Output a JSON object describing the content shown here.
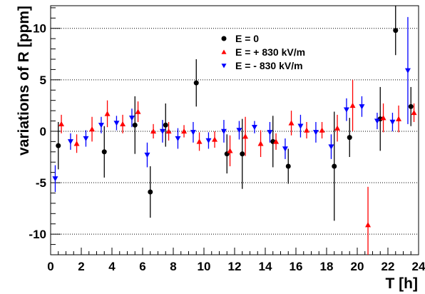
{
  "chart_data": {
    "type": "scatter",
    "title": "",
    "xlabel": "T [h]",
    "ylabel": "variations of R [ppm]",
    "xlim": [
      0,
      24
    ],
    "ylim": [
      -12,
      12.2
    ],
    "x_ticks": [
      0,
      2,
      4,
      6,
      8,
      10,
      12,
      14,
      16,
      18,
      20,
      22,
      24
    ],
    "y_ticks": [
      -10,
      -5,
      0,
      5,
      10
    ],
    "y_grid": [
      -10,
      -5,
      0,
      5,
      10
    ],
    "grid": "horizontal dotted",
    "legend_position": "top-center",
    "series": [
      {
        "name": "E = 0",
        "color": "#000000",
        "marker": "circle",
        "points": [
          {
            "x": 0.5,
            "y": -1.4,
            "err": 2.3
          },
          {
            "x": 3.5,
            "y": -2.0,
            "err": 2.5
          },
          {
            "x": 5.5,
            "y": 0.6,
            "err": 2.8
          },
          {
            "x": 6.5,
            "y": -5.9,
            "err": 2.5
          },
          {
            "x": 7.5,
            "y": 0.6,
            "err": 2.1
          },
          {
            "x": 9.5,
            "y": 4.7,
            "err": 2.3
          },
          {
            "x": 11.5,
            "y": -2.2,
            "err": 1.9
          },
          {
            "x": 12.5,
            "y": -2.2,
            "err": 3.4
          },
          {
            "x": 14.5,
            "y": -1.0,
            "err": 2.5
          },
          {
            "x": 15.5,
            "y": -3.4,
            "err": 1.7
          },
          {
            "x": 18.5,
            "y": -3.4,
            "err": 5.3
          },
          {
            "x": 19.5,
            "y": -0.6,
            "err": 1.9
          },
          {
            "x": 21.5,
            "y": 1.2,
            "err": 3.1
          },
          {
            "x": 22.5,
            "y": 9.8,
            "err": 2.4
          },
          {
            "x": 23.5,
            "y": 2.4,
            "err": 1.9
          }
        ]
      },
      {
        "name": "E = + 830 kV/m",
        "color": "#ff0000",
        "marker": "triangle-up",
        "points": [
          {
            "x": 0.7,
            "y": 0.7,
            "err": 0.9
          },
          {
            "x": 1.7,
            "y": -1.2,
            "err": 0.9
          },
          {
            "x": 2.7,
            "y": 0.2,
            "err": 1.2
          },
          {
            "x": 3.7,
            "y": 1.7,
            "err": 1.3
          },
          {
            "x": 4.7,
            "y": 0.7,
            "err": 0.9
          },
          {
            "x": 5.7,
            "y": 1.9,
            "err": 1.0
          },
          {
            "x": 6.7,
            "y": 0.0,
            "err": 0.7
          },
          {
            "x": 7.7,
            "y": 0.0,
            "err": 0.9
          },
          {
            "x": 8.7,
            "y": 0.0,
            "err": 0.6
          },
          {
            "x": 9.7,
            "y": -1.0,
            "err": 0.9
          },
          {
            "x": 10.7,
            "y": -0.8,
            "err": 0.8
          },
          {
            "x": 11.7,
            "y": -1.9,
            "err": 1.5
          },
          {
            "x": 12.7,
            "y": -0.5,
            "err": 1.9
          },
          {
            "x": 13.7,
            "y": -1.2,
            "err": 1.3
          },
          {
            "x": 14.7,
            "y": -1.0,
            "err": 0.8
          },
          {
            "x": 15.7,
            "y": 0.8,
            "err": 1.2
          },
          {
            "x": 16.7,
            "y": 0.1,
            "err": 0.8
          },
          {
            "x": 17.7,
            "y": 0.1,
            "err": 0.8
          },
          {
            "x": 18.7,
            "y": 0.3,
            "err": 1.3
          },
          {
            "x": 19.7,
            "y": 2.5,
            "err": 2.5
          },
          {
            "x": 20.7,
            "y": -9.1,
            "err": 3.7
          },
          {
            "x": 21.7,
            "y": 1.3,
            "err": 1.4
          },
          {
            "x": 22.7,
            "y": 1.2,
            "err": 1.3
          },
          {
            "x": 23.7,
            "y": 1.8,
            "err": 0.9
          }
        ]
      },
      {
        "name": "E = - 830 kV/m",
        "color": "#0000ff",
        "marker": "triangle-down",
        "points": [
          {
            "x": 0.3,
            "y": -4.6,
            "err": 1.3
          },
          {
            "x": 1.3,
            "y": -1.0,
            "err": 0.8
          },
          {
            "x": 2.3,
            "y": -0.7,
            "err": 0.8
          },
          {
            "x": 3.3,
            "y": 0.6,
            "err": 0.8
          },
          {
            "x": 4.3,
            "y": 0.8,
            "err": 0.7
          },
          {
            "x": 5.3,
            "y": 1.3,
            "err": 0.9
          },
          {
            "x": 6.3,
            "y": -2.3,
            "err": 1.2
          },
          {
            "x": 7.3,
            "y": 0.0,
            "err": 1.1
          },
          {
            "x": 8.3,
            "y": -0.7,
            "err": 1.0
          },
          {
            "x": 9.3,
            "y": -0.1,
            "err": 1.0
          },
          {
            "x": 10.3,
            "y": -0.9,
            "err": 0.8
          },
          {
            "x": 11.3,
            "y": 0.0,
            "err": 1.1
          },
          {
            "x": 12.3,
            "y": 0.1,
            "err": 0.9
          },
          {
            "x": 13.3,
            "y": 0.4,
            "err": 0.6
          },
          {
            "x": 14.3,
            "y": -0.1,
            "err": 1.0
          },
          {
            "x": 15.3,
            "y": -1.7,
            "err": 1.0
          },
          {
            "x": 16.3,
            "y": 0.5,
            "err": 1.1
          },
          {
            "x": 17.3,
            "y": -0.1,
            "err": 1.0
          },
          {
            "x": 18.3,
            "y": -1.5,
            "err": 1.2
          },
          {
            "x": 19.3,
            "y": 2.1,
            "err": 1.1
          },
          {
            "x": 20.3,
            "y": 2.4,
            "err": 1.0
          },
          {
            "x": 21.3,
            "y": 1.0,
            "err": 0.8
          },
          {
            "x": 22.3,
            "y": 0.9,
            "err": 0.9
          },
          {
            "x": 23.3,
            "y": 5.9,
            "err": 5.2
          }
        ]
      }
    ]
  }
}
